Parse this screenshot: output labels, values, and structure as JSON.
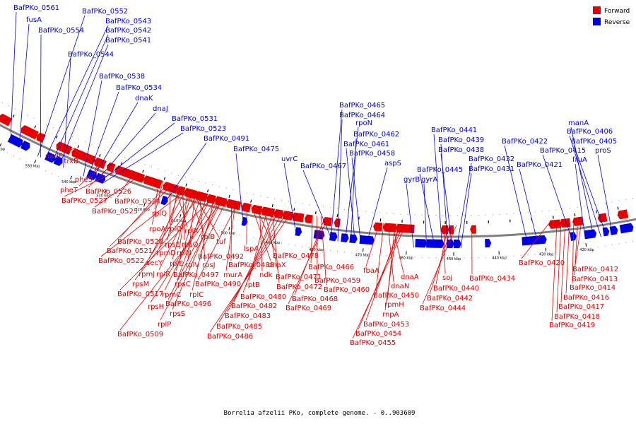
{
  "title": "Borrelia afzelii PKo, complete genome. - 0..903609",
  "colors": {
    "forward": "#e60000",
    "reverse": "#0000e6",
    "backbone": "#808080"
  },
  "legend": [
    {
      "name": "Forward",
      "color": "#e60000"
    },
    {
      "name": "Reverse",
      "color": "#0000e6"
    }
  ],
  "ticks": [
    "560 kbp",
    "550 kbp",
    "540 kbp",
    "530 kbp",
    "520 kbp",
    "510 kbp",
    "500 kbp",
    "490 kbp",
    "480 kbp",
    "470 kbp",
    "460 kbp",
    "450 kbp",
    "440 kbp",
    "430 kbp",
    "420 kbp"
  ],
  "reverse_labels": [
    "BafPKo_0561",
    "fusA",
    "BafPKo_0552",
    "BafPKo_0554",
    "BafPKo_0543",
    "BafPKo_0542",
    "BafPKo_0541",
    "BafPKo_0544",
    "BafPKo_0538",
    "BafPKo_0534",
    "dnaK",
    "dnaJ",
    "BafPKo_0531",
    "BafPKo_0523",
    "BafPKo_0491",
    "BafPKo_0475",
    "uvrC",
    "BafPKo_0467",
    "BafPKo_0465",
    "BafPKo_0464",
    "rpoN",
    "BafPKo_0462",
    "BafPKo_0461",
    "BafPKo_0458",
    "aspS",
    "gyrB",
    "gyrA",
    "BafPKo_0445",
    "BafPKo_0441",
    "BafPKo_0439",
    "BafPKo_0438",
    "BafPKo_0432",
    "BafPKo_0431",
    "BafPKo_0422",
    "BafPKo_0421",
    "BafPKo_0415",
    "fruA",
    "manA",
    "BafPKo_0406",
    "BafPKo_0405",
    "proS"
  ],
  "forward_labels": [
    "nadE",
    "trxB",
    "pheS",
    "pheT",
    "BafPKo_0526",
    "BafPKo_0527",
    "BafPKo_0524",
    "BafPKo_0525",
    "rplQ",
    "rpoA",
    "rplO",
    "BafPKo_0520",
    "rplX",
    "BafPKo_0521",
    "rpsE",
    "rpsQ",
    "rplB",
    "tuf",
    "rpmD",
    "rplN",
    "secY",
    "BafPKo_0522",
    "rplE",
    "rplV",
    "rpsJ",
    "rpmJ",
    "rplR",
    "BafPKo_0497",
    "rpsM",
    "rpsC",
    "rpmC",
    "BafPKo_0517",
    "rplC",
    "rpsH",
    "BafPKo_0496",
    "rpsS",
    "rplP",
    "BafPKo_0509",
    "BafPKo_0492",
    "BafPKo_0488",
    "murA",
    "BafPKo_0490",
    "lspA",
    "dnaX",
    "BafPKo_0478",
    "ndk",
    "BafPKo_0471",
    "lptB",
    "BafPKo_0472",
    "BafPKo_0480",
    "BafPKo_0482",
    "BafPKo_0483",
    "BafPKo_0485",
    "BafPKo_0486",
    "BafPKo_0466",
    "BafPKo_0459",
    "BafPKo_0460",
    "BafPKo_0468",
    "BafPKo_0469",
    "fbaA",
    "dnaA",
    "dnaN",
    "BafPKo_0450",
    "rpmH",
    "rnpA",
    "BafPKo_0453",
    "BafPKo_0454",
    "BafPKo_0455",
    "soj",
    "BafPKo_0434",
    "BafPKo_0440",
    "BafPKo_0442",
    "BafPKo_0444",
    "BafPKo_0420",
    "BafPKo_0412",
    "BafPKo_0413",
    "BafPKo_0414",
    "BafPKo_0416",
    "BafPKo_0417",
    "BafPKo_0418",
    "BafPKo_0419"
  ]
}
